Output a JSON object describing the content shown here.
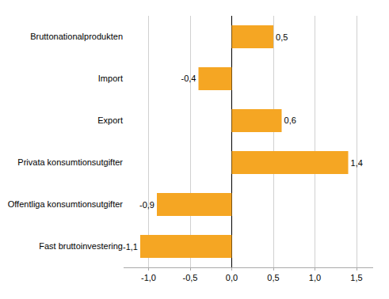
{
  "chart_data": {
    "type": "bar",
    "orientation": "horizontal",
    "categories": [
      "Fast bruttoinvestering",
      "Offentliga konsumtionsutgifter",
      "Privata konsumtionsutgifter",
      "Export",
      "Import",
      "Bruttonationalprodukten"
    ],
    "values": [
      -1.1,
      -0.9,
      1.4,
      0.6,
      -0.4,
      0.5
    ],
    "value_labels": [
      "-1,1",
      "-0,9",
      "1,4",
      "0,6",
      "-0,4",
      "0,5"
    ],
    "data_labels": true,
    "color": "#F5A623",
    "xlim": [
      -1.3,
      1.7
    ],
    "xticks": [
      {
        "value": -1.0,
        "label": "-1,0"
      },
      {
        "value": -0.5,
        "label": "-0,5"
      },
      {
        "value": 0.0,
        "label": "0,0"
      },
      {
        "value": 0.5,
        "label": "0,5"
      },
      {
        "value": 1.0,
        "label": "1,0"
      },
      {
        "value": 1.5,
        "label": "1,5"
      }
    ],
    "grid": true
  }
}
